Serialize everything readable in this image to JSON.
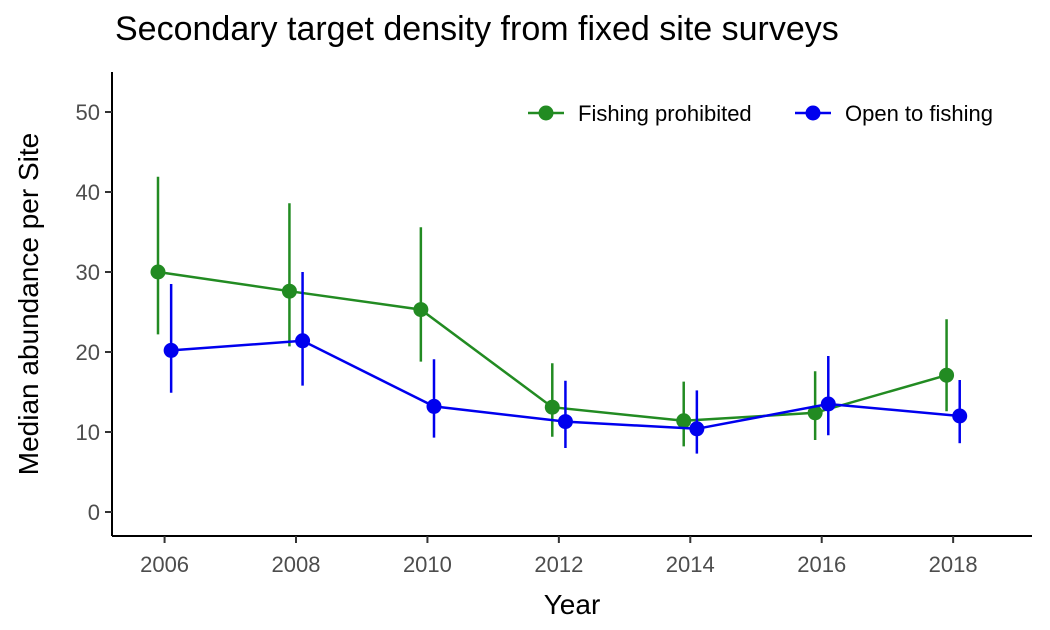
{
  "chart_data": {
    "type": "line",
    "title": "Secondary target density from fixed site surveys",
    "xlabel": "Year",
    "ylabel": "Median abundance per Site",
    "x": [
      2006,
      2008,
      2010,
      2012,
      2014,
      2016,
      2018
    ],
    "x_ticks": [
      "2006",
      "2008",
      "2010",
      "2012",
      "2014",
      "2016",
      "2018"
    ],
    "xlim": [
      2005.2,
      2019.2
    ],
    "ylim": [
      -3,
      55
    ],
    "y_ticks": [
      0,
      10,
      20,
      30,
      40,
      50
    ],
    "y_tick_labels": [
      "0",
      "10",
      "20",
      "30",
      "40",
      "50"
    ],
    "legend_position": "top-right",
    "series": [
      {
        "name": "Fishing prohibited",
        "color": "#228B22",
        "values": [
          30.0,
          27.6,
          25.3,
          13.1,
          11.4,
          12.4,
          17.1
        ],
        "lower": [
          22.2,
          20.7,
          18.8,
          9.4,
          8.2,
          9.0,
          12.6
        ],
        "upper": [
          41.9,
          38.6,
          35.6,
          18.6,
          16.3,
          17.6,
          24.1
        ]
      },
      {
        "name": "Open to fishing",
        "color": "#0000EE",
        "values": [
          20.2,
          21.4,
          13.2,
          11.3,
          10.4,
          13.5,
          12.0
        ],
        "lower": [
          14.9,
          15.8,
          9.3,
          8.0,
          7.3,
          9.6,
          8.6
        ],
        "upper": [
          28.5,
          30.0,
          19.1,
          16.4,
          15.2,
          19.5,
          16.5
        ]
      }
    ]
  }
}
